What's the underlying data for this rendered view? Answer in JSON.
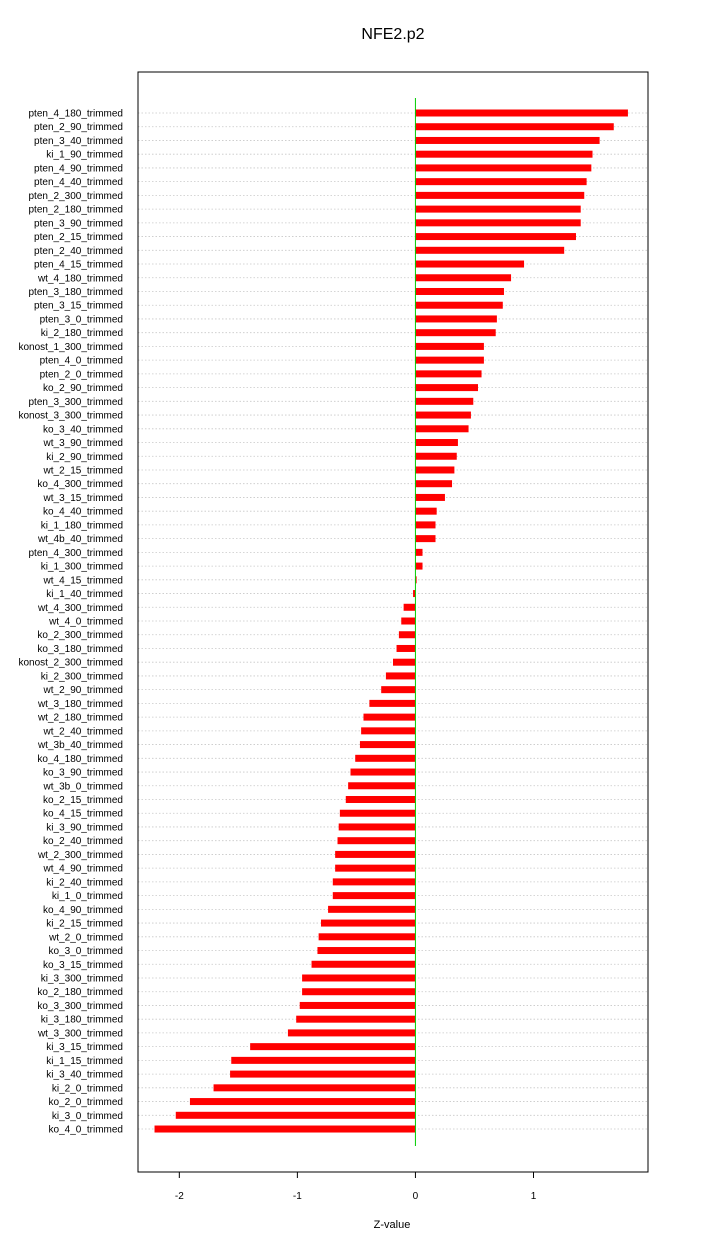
{
  "chart_data": {
    "type": "bar",
    "orientation": "horizontal",
    "title": "NFE2.p2",
    "xlabel": "Z-value",
    "ylabel": "",
    "xlim": [
      -2.35,
      1.97
    ],
    "xticks": [
      -2,
      -1,
      0,
      1
    ],
    "xtick_labels": [
      "-2",
      "-1",
      "0",
      "1"
    ],
    "grid": "horizontal dotted",
    "zero_line_color": "#00cc00",
    "bar_color": "#ff0000",
    "categories": [
      "pten_4_180_trimmed",
      "pten_2_90_trimmed",
      "pten_3_40_trimmed",
      "ki_1_90_trimmed",
      "pten_4_90_trimmed",
      "pten_4_40_trimmed",
      "pten_2_300_trimmed",
      "pten_2_180_trimmed",
      "pten_3_90_trimmed",
      "pten_2_15_trimmed",
      "pten_2_40_trimmed",
      "pten_4_15_trimmed",
      "wt_4_180_trimmed",
      "pten_3_180_trimmed",
      "pten_3_15_trimmed",
      "pten_3_0_trimmed",
      "ki_2_180_trimmed",
      "konost_1_300_trimmed",
      "pten_4_0_trimmed",
      "pten_2_0_trimmed",
      "ko_2_90_trimmed",
      "pten_3_300_trimmed",
      "konost_3_300_trimmed",
      "ko_3_40_trimmed",
      "wt_3_90_trimmed",
      "ki_2_90_trimmed",
      "wt_2_15_trimmed",
      "ko_4_300_trimmed",
      "wt_3_15_trimmed",
      "ko_4_40_trimmed",
      "ki_1_180_trimmed",
      "wt_4b_40_trimmed",
      "pten_4_300_trimmed",
      "ki_1_300_trimmed",
      "wt_4_15_trimmed",
      "ki_1_40_trimmed",
      "wt_4_300_trimmed",
      "wt_4_0_trimmed",
      "ko_2_300_trimmed",
      "ko_3_180_trimmed",
      "konost_2_300_trimmed",
      "ki_2_300_trimmed",
      "wt_2_90_trimmed",
      "wt_3_180_trimmed",
      "wt_2_180_trimmed",
      "wt_2_40_trimmed",
      "wt_3b_40_trimmed",
      "ko_4_180_trimmed",
      "ko_3_90_trimmed",
      "wt_3b_0_trimmed",
      "ko_2_15_trimmed",
      "ko_4_15_trimmed",
      "ki_3_90_trimmed",
      "ko_2_40_trimmed",
      "wt_2_300_trimmed",
      "wt_4_90_trimmed",
      "ki_2_40_trimmed",
      "ki_1_0_trimmed",
      "ko_4_90_trimmed",
      "ki_2_15_trimmed",
      "wt_2_0_trimmed",
      "ko_3_0_trimmed",
      "ko_3_15_trimmed",
      "ki_3_300_trimmed",
      "ko_2_180_trimmed",
      "ko_3_300_trimmed",
      "ki_3_180_trimmed",
      "wt_3_300_trimmed",
      "ki_3_15_trimmed",
      "ki_1_15_trimmed",
      "ki_3_40_trimmed",
      "ki_2_0_trimmed",
      "ko_2_0_trimmed",
      "ki_3_0_trimmed",
      "ko_4_0_trimmed"
    ],
    "values": [
      1.8,
      1.68,
      1.56,
      1.5,
      1.49,
      1.45,
      1.43,
      1.4,
      1.4,
      1.36,
      1.26,
      0.92,
      0.81,
      0.75,
      0.74,
      0.69,
      0.68,
      0.58,
      0.58,
      0.56,
      0.53,
      0.49,
      0.47,
      0.45,
      0.36,
      0.35,
      0.33,
      0.31,
      0.25,
      0.18,
      0.17,
      0.17,
      0.06,
      0.06,
      0.01,
      -0.02,
      -0.1,
      -0.12,
      -0.14,
      -0.16,
      -0.19,
      -0.25,
      -0.29,
      -0.39,
      -0.44,
      -0.46,
      -0.47,
      -0.51,
      -0.55,
      -0.57,
      -0.59,
      -0.64,
      -0.65,
      -0.66,
      -0.68,
      -0.68,
      -0.7,
      -0.7,
      -0.74,
      -0.8,
      -0.82,
      -0.83,
      -0.88,
      -0.96,
      -0.96,
      -0.98,
      -1.01,
      -1.08,
      -1.4,
      -1.56,
      -1.57,
      -1.71,
      -1.91,
      -2.03,
      -2.21
    ]
  }
}
